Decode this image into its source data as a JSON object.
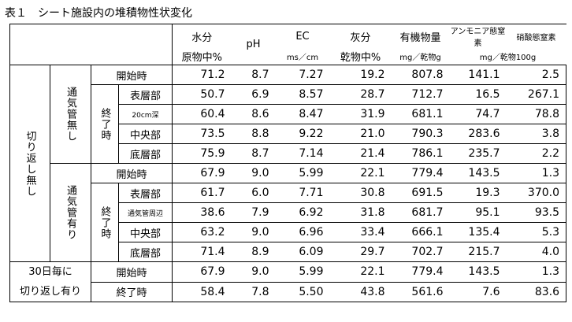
{
  "title": "表１　シート施設内の堆積物性状変化",
  "header": {
    "names": [
      "水分",
      "pH",
      "EC",
      "灰分",
      "有機物量",
      "アンモニア態窒素",
      "硝酸態窒素"
    ],
    "units": [
      "原物中%",
      "ms／cm",
      "乾物中%",
      "mg／乾物g",
      "mg／乾物100g"
    ]
  },
  "sections": [
    {
      "label": "切り返し無し",
      "subgroups": [
        {
          "label": "通気管無し",
          "start": {
            "label": "開始時",
            "values": [
              "71.2",
              "8.7",
              "7.27",
              "19.2",
              "807.8",
              "141.1",
              "2.5"
            ]
          },
          "end": {
            "label": "終了時",
            "rows": [
              {
                "label": "表層部",
                "values": [
                  "50.7",
                  "6.9",
                  "8.57",
                  "28.7",
                  "712.7",
                  "16.5",
                  "267.1"
                ]
              },
              {
                "label": "20cm深",
                "values": [
                  "60.4",
                  "8.6",
                  "8.47",
                  "31.9",
                  "681.1",
                  "74.7",
                  "78.8"
                ]
              },
              {
                "label": "中央部",
                "values": [
                  "73.5",
                  "8.8",
                  "9.22",
                  "21.0",
                  "790.3",
                  "283.6",
                  "3.8"
                ]
              },
              {
                "label": "底層部",
                "values": [
                  "75.9",
                  "8.7",
                  "7.14",
                  "21.4",
                  "786.1",
                  "235.7",
                  "2.2"
                ]
              }
            ]
          }
        },
        {
          "label": "通気管有り",
          "start": {
            "label": "開始時",
            "values": [
              "67.9",
              "9.0",
              "5.99",
              "22.1",
              "779.4",
              "143.5",
              "1.3"
            ]
          },
          "end": {
            "label": "終了時",
            "rows": [
              {
                "label": "表層部",
                "values": [
                  "61.7",
                  "6.0",
                  "7.71",
                  "30.8",
                  "691.5",
                  "19.3",
                  "370.0"
                ]
              },
              {
                "label": "通気管周辺",
                "values": [
                  "38.6",
                  "7.9",
                  "6.92",
                  "31.8",
                  "681.7",
                  "95.1",
                  "93.5"
                ]
              },
              {
                "label": "中央部",
                "values": [
                  "63.2",
                  "9.0",
                  "6.96",
                  "33.4",
                  "666.1",
                  "135.4",
                  "5.3"
                ]
              },
              {
                "label": "底層部",
                "values": [
                  "71.4",
                  "8.9",
                  "6.09",
                  "29.7",
                  "702.7",
                  "215.7",
                  "4.0"
                ]
              }
            ]
          }
        }
      ]
    },
    {
      "label_lines": [
        "30日毎に",
        "切り返し有り"
      ],
      "rows": [
        {
          "label": "開始時",
          "values": [
            "67.9",
            "9.0",
            "5.99",
            "22.1",
            "779.4",
            "143.5",
            "1.3"
          ]
        },
        {
          "label": "終了時",
          "values": [
            "58.4",
            "7.8",
            "5.50",
            "43.8",
            "561.6",
            "7.6",
            "83.6"
          ]
        }
      ]
    }
  ]
}
